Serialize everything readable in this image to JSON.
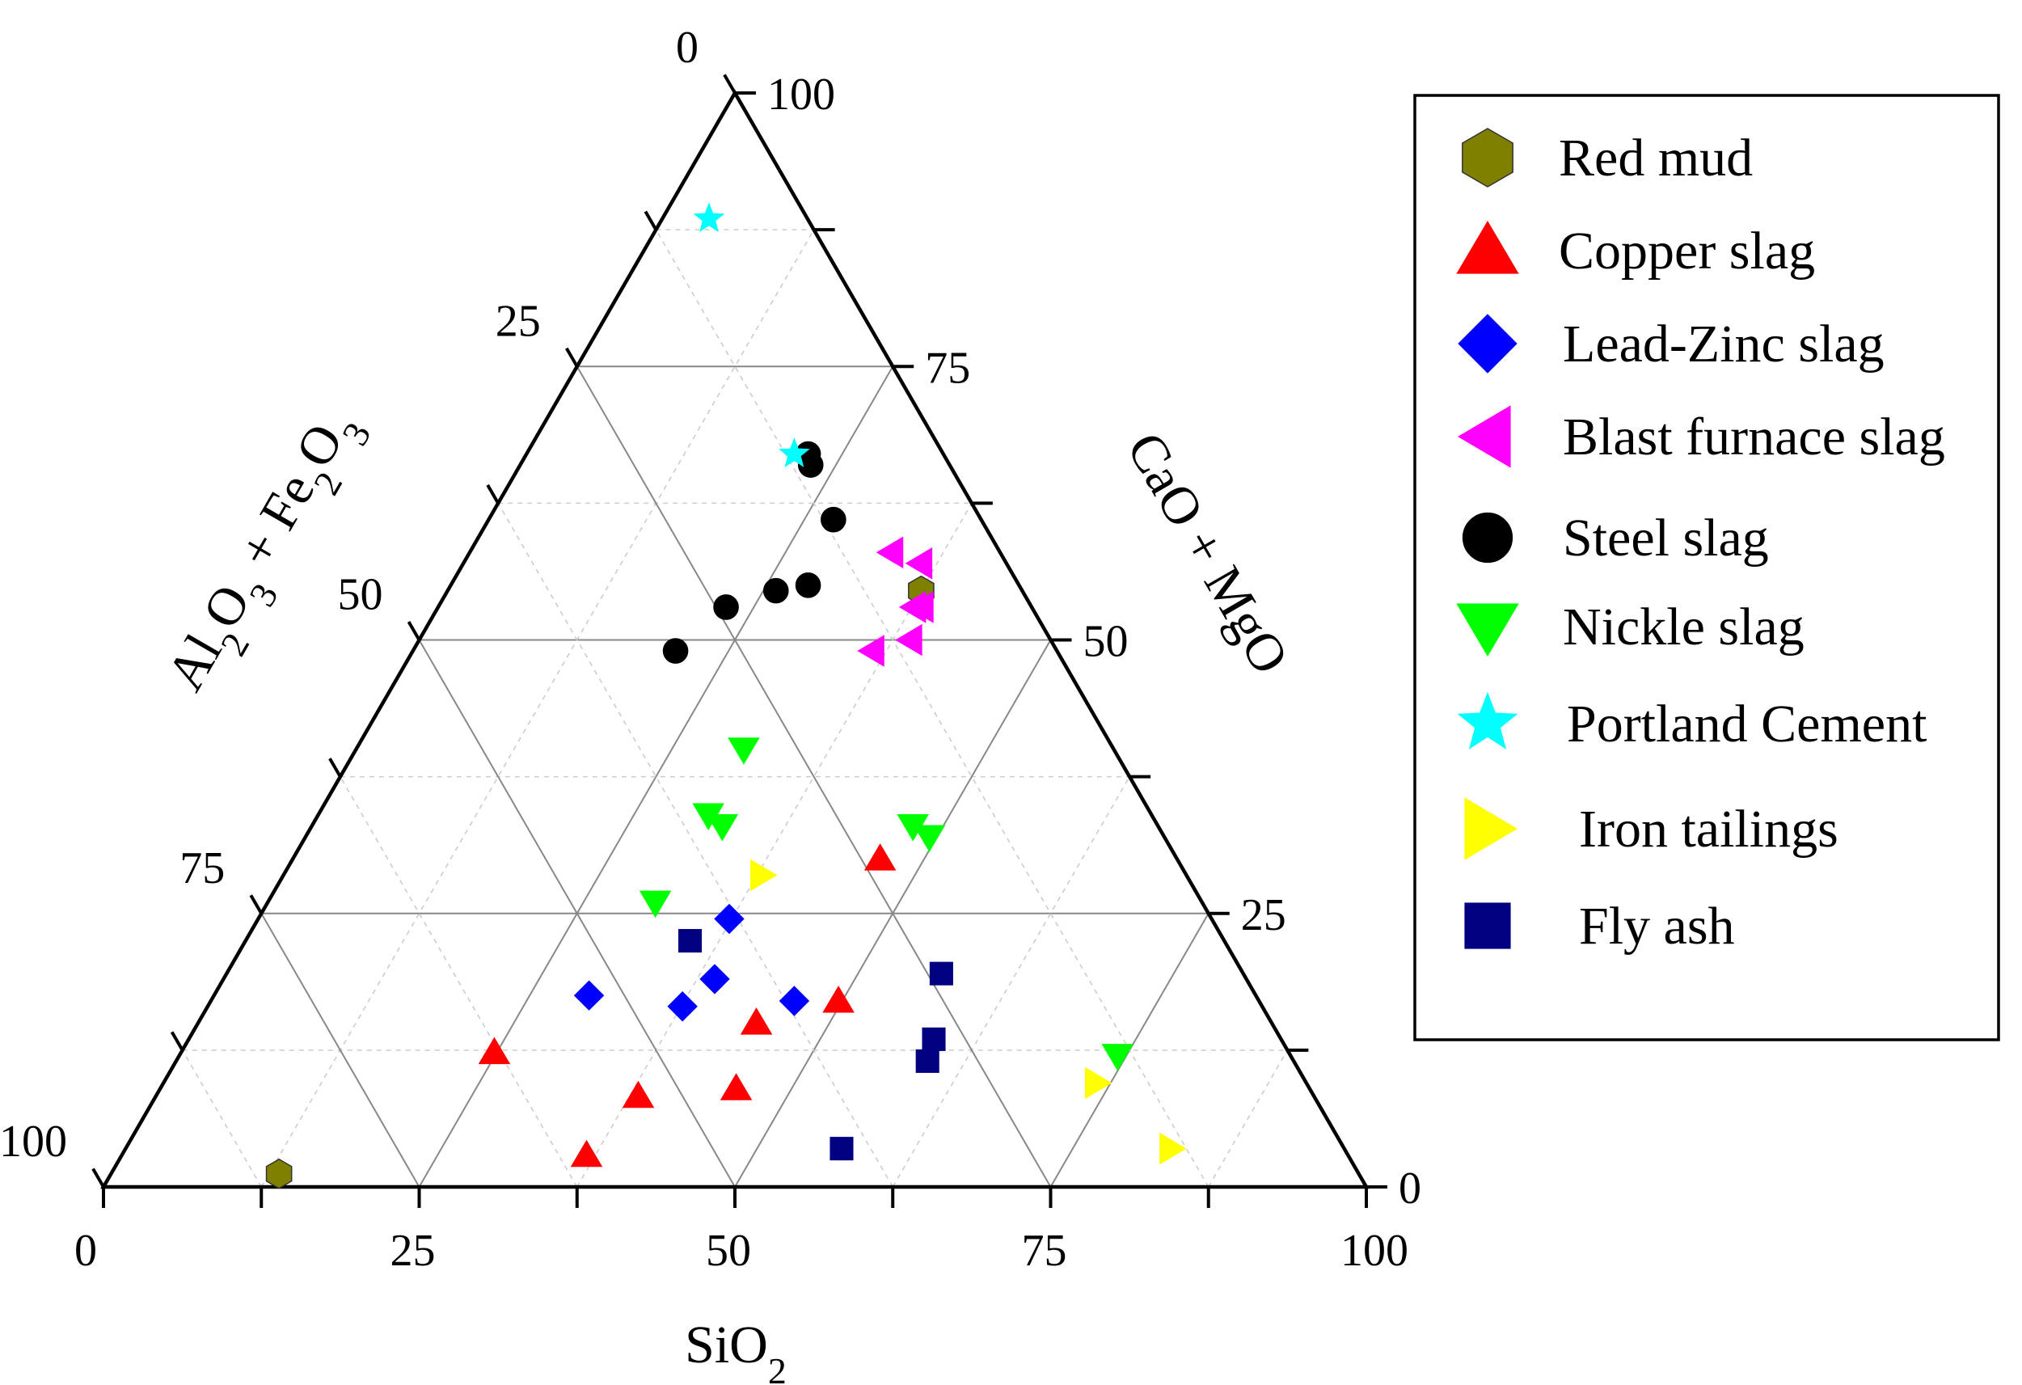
{
  "chart_data": {
    "type": "ternary-scatter",
    "axes": {
      "bottom": {
        "label": "SiO",
        "sub": "2",
        "ticks": [
          "0",
          "25",
          "50",
          "75",
          "100"
        ]
      },
      "right": {
        "label": "CaO + MgO",
        "ticks": [
          "0",
          "25",
          "50",
          "75",
          "100"
        ]
      },
      "left": {
        "label_parts": [
          {
            "t": "Al"
          },
          {
            "t": "2",
            "sub": true
          },
          {
            "t": "O"
          },
          {
            "t": "3",
            "sub": true
          },
          {
            "t": " + Fe"
          },
          {
            "t": "2",
            "sub": true
          },
          {
            "t": "O"
          },
          {
            "t": "3",
            "sub": true
          }
        ],
        "ticks": [
          "0",
          "25",
          "50",
          "75",
          "100"
        ]
      }
    },
    "series": [
      {
        "name": "Red mud",
        "marker": "hexagon",
        "color": "#808000",
        "points": [
          [
            13.3,
            1.2
          ],
          [
            37.5,
            54.5
          ]
        ]
      },
      {
        "name": "Copper slag",
        "marker": "triangle-up",
        "color": "#ff0000",
        "points": [
          [
            24.8,
            12.3
          ],
          [
            36.8,
            2.9
          ],
          [
            38.2,
            8.3
          ],
          [
            44.2,
            15.0
          ],
          [
            45.6,
            9.0
          ],
          [
            49.7,
            17.0
          ],
          [
            46.5,
            30.0
          ]
        ]
      },
      {
        "name": "Lead-Zinc slag",
        "marker": "diamond",
        "color": "#0000ff",
        "points": [
          [
            29.7,
            17.5
          ],
          [
            37.3,
            24.5
          ],
          [
            37.6,
            16.5
          ],
          [
            38.9,
            19.0
          ],
          [
            46.2,
            17.0
          ]
        ]
      },
      {
        "name": "Blast furnace slag",
        "marker": "triangle-left",
        "color": "#ff00ff",
        "points": [
          [
            33.4,
            58.0
          ],
          [
            36.2,
            57.0
          ],
          [
            37.7,
            53.0
          ],
          [
            38.3,
            53.0
          ],
          [
            36.4,
            49.0
          ],
          [
            38.9,
            50.0
          ]
        ]
      },
      {
        "name": "Steel slag",
        "marker": "circle",
        "color": "#000000",
        "points": [
          [
            20.8,
            49.0
          ],
          [
            22.8,
            53.0
          ],
          [
            26.0,
            54.5
          ],
          [
            28.3,
            55.0
          ],
          [
            27.3,
            61.0
          ],
          [
            22.3,
            67.0
          ],
          [
            23.0,
            66.0
          ]
        ]
      },
      {
        "name": "Nickle slag",
        "marker": "triangle-down",
        "color": "#00ff00",
        "points": [
          [
            30.7,
            40.0
          ],
          [
            30.9,
            34.0
          ],
          [
            32.5,
            33.0
          ],
          [
            47.6,
            33.0
          ],
          [
            49.4,
            32.0
          ],
          [
            30.7,
            26.0
          ],
          [
            74.3,
            12.0
          ]
        ]
      },
      {
        "name": "Portland Cement",
        "marker": "star",
        "color": "#00ffff",
        "points": [
          [
            3.7,
            88.5
          ],
          [
            21.2,
            67.0
          ]
        ]
      },
      {
        "name": "Iron tailings",
        "marker": "triangle-right",
        "color": "#ffff00",
        "points": [
          [
            37.9,
            28.5
          ],
          [
            73.9,
            9.5
          ],
          [
            82.8,
            3.5
          ]
        ]
      },
      {
        "name": "Fly ash",
        "marker": "square",
        "color": "#000080",
        "points": [
          [
            35.2,
            22.5
          ],
          [
            56.6,
            19.5
          ],
          [
            59.0,
            13.5
          ],
          [
            59.5,
            11.5
          ],
          [
            56.7,
            3.5
          ]
        ]
      }
    ]
  }
}
